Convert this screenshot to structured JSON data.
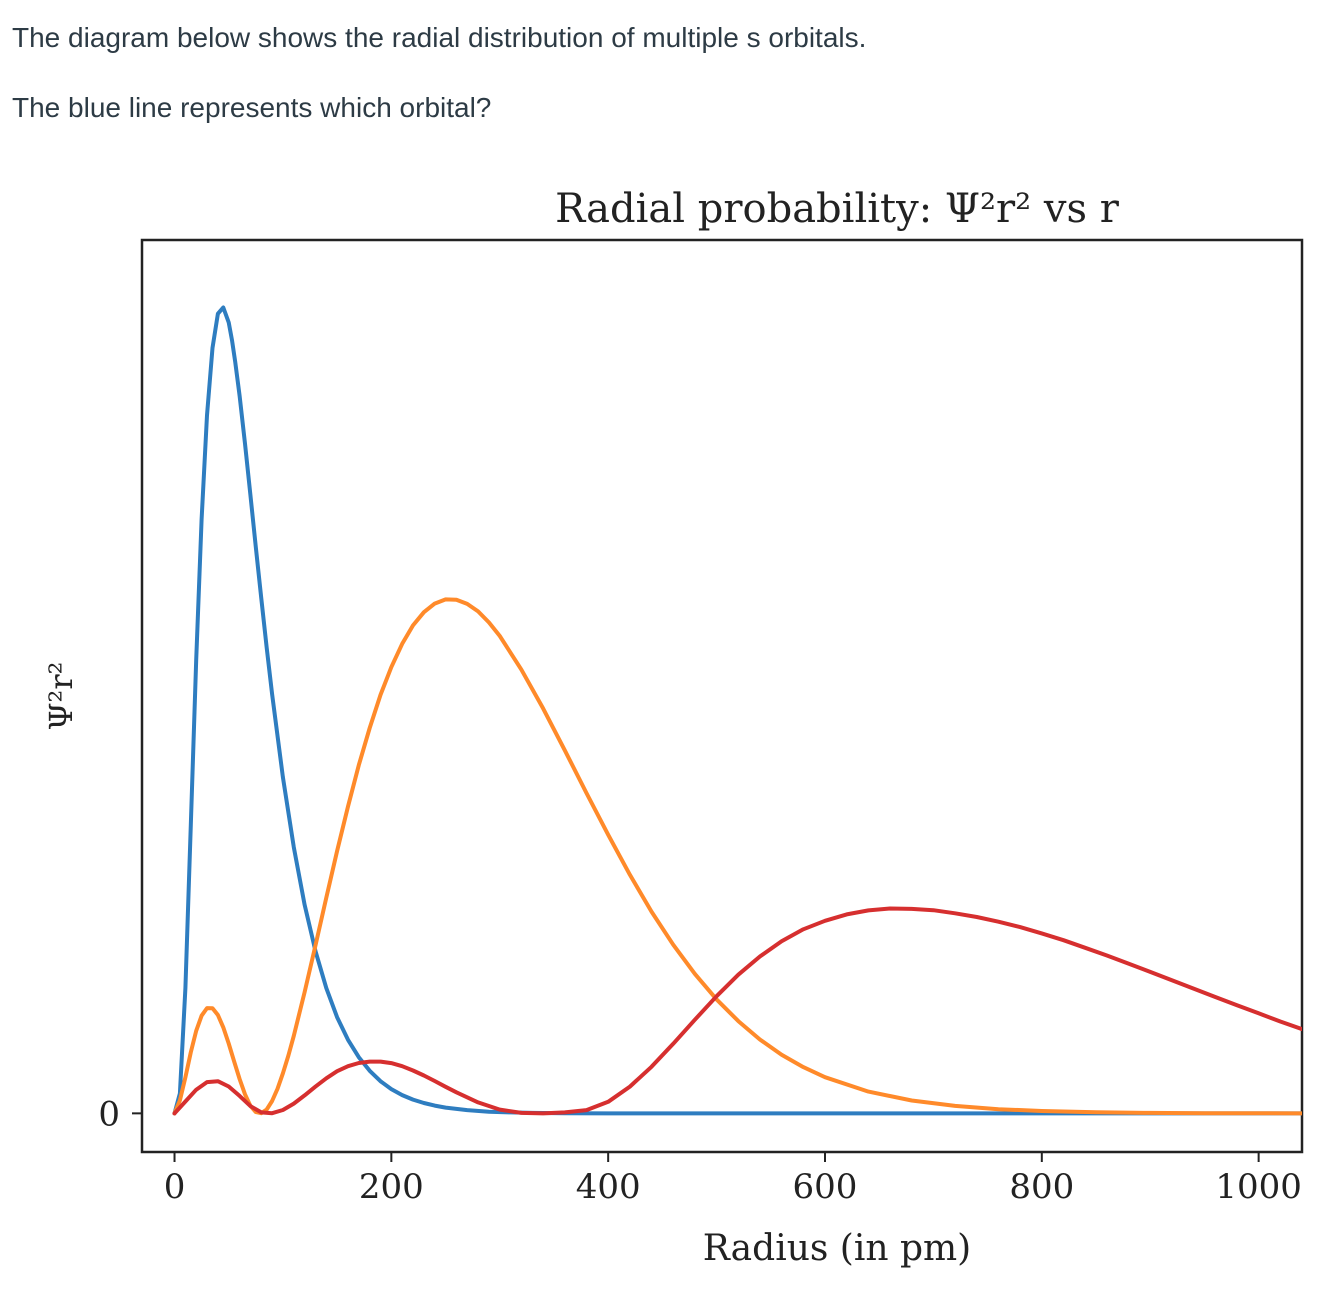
{
  "question": {
    "line1": "The diagram below shows the radial distribution of multiple s orbitals.",
    "line2": "The blue line represents which orbital?"
  },
  "chart_data": {
    "type": "line",
    "title": "Radial probability: Ψ²r² vs r",
    "xlabel": "Radius (in pm)",
    "ylabel": "Ψ²r²",
    "xlim": [
      -30,
      1040
    ],
    "ylim": [
      -0.0025,
      0.0565
    ],
    "x_ticks": [
      0,
      200,
      400,
      600,
      800,
      1000
    ],
    "y_ticks": [
      0
    ],
    "grid": false,
    "legend": "none",
    "colors": {
      "blue": "#2e7dc0",
      "orange": "#ff8a2a",
      "red": "#d62f2f"
    },
    "series": [
      {
        "color": "blue",
        "x": [
          0,
          5,
          10,
          15,
          20,
          25,
          30,
          35,
          40,
          45,
          50,
          53,
          56,
          60,
          65,
          70,
          75,
          80,
          85,
          90,
          100,
          110,
          120,
          130,
          140,
          150,
          160,
          170,
          180,
          190,
          200,
          210,
          220,
          230,
          240,
          250,
          270,
          290,
          310,
          330,
          360,
          400,
          450,
          500,
          600,
          700,
          800,
          900,
          1000,
          1040
        ],
        "y": [
          0,
          0.00129,
          0.0081,
          0.01864,
          0.02934,
          0.03843,
          0.04516,
          0.04952,
          0.05173,
          0.05213,
          0.05117,
          0.05002,
          0.04862,
          0.04643,
          0.04333,
          0.04001,
          0.03663,
          0.03331,
          0.03012,
          0.02712,
          0.02175,
          0.01722,
          0.0135,
          0.01049,
          0.0081,
          0.00622,
          0.00476,
          0.00363,
          0.00275,
          0.00208,
          0.00157,
          0.00118,
          0.00089,
          0.00067,
          0.0005,
          0.00037,
          0.00021,
          0.00011,
          6e-05,
          3e-05,
          1e-05,
          0,
          0,
          0,
          0,
          0,
          0,
          0,
          0,
          0
        ]
      },
      {
        "color": "orange",
        "x": [
          0,
          5,
          10,
          15,
          20,
          25,
          30,
          35,
          40,
          45,
          50,
          55,
          60,
          65,
          70,
          75,
          80,
          85,
          90,
          95,
          100,
          105,
          110,
          120,
          130,
          140,
          150,
          160,
          170,
          180,
          190,
          200,
          210,
          220,
          230,
          240,
          250,
          260,
          270,
          280,
          290,
          300,
          320,
          340,
          360,
          380,
          400,
          420,
          440,
          460,
          480,
          500,
          520,
          540,
          560,
          580,
          600,
          640,
          680,
          720,
          760,
          800,
          850,
          900,
          950,
          1000,
          1040
        ],
        "y": [
          0,
          0.00084,
          0.00233,
          0.00395,
          0.00534,
          0.00632,
          0.00681,
          0.0068,
          0.00636,
          0.00556,
          0.00452,
          0.00337,
          0.00222,
          0.00123,
          0.00049,
          8e-05,
          1e-05,
          0.00025,
          0.0008,
          0.00159,
          0.00259,
          0.00374,
          0.00502,
          0.00784,
          0.01087,
          0.01395,
          0.01697,
          0.01985,
          0.02253,
          0.02493,
          0.02707,
          0.02886,
          0.03038,
          0.03157,
          0.03242,
          0.03298,
          0.03325,
          0.03323,
          0.03296,
          0.03247,
          0.03176,
          0.03088,
          0.0287,
          0.0262,
          0.02349,
          0.02072,
          0.01802,
          0.01543,
          0.01305,
          0.01091,
          0.00902,
          0.00737,
          0.00597,
          0.00478,
          0.00379,
          0.00299,
          0.00234,
          0.00141,
          0.00083,
          0.00048,
          0.00027,
          0.00015,
          7e-05,
          3e-05,
          1e-05,
          1e-05,
          0
        ]
      },
      {
        "color": "red",
        "x": [
          0,
          10,
          20,
          30,
          40,
          50,
          60,
          70,
          80,
          90,
          100,
          110,
          120,
          130,
          140,
          150,
          160,
          170,
          180,
          190,
          200,
          210,
          220,
          230,
          240,
          250,
          260,
          280,
          300,
          320,
          340,
          360,
          380,
          400,
          420,
          440,
          460,
          480,
          500,
          520,
          540,
          560,
          580,
          600,
          620,
          640,
          660,
          680,
          700,
          720,
          740,
          760,
          780,
          800,
          820,
          840,
          860,
          880,
          900,
          920,
          940,
          960,
          980,
          1000,
          1020,
          1040
        ],
        "y": [
          0,
          0.00077,
          0.00153,
          0.00202,
          0.00208,
          0.00174,
          0.00113,
          0.00047,
          6e-05,
          1e-05,
          0.00022,
          0.00063,
          0.00116,
          0.00173,
          0.00227,
          0.00273,
          0.00305,
          0.00326,
          0.00335,
          0.00335,
          0.00325,
          0.00305,
          0.00277,
          0.00245,
          0.00209,
          0.00172,
          0.00136,
          0.00071,
          0.00024,
          3e-05,
          0.0,
          6e-05,
          0.00021,
          0.00075,
          0.00173,
          0.00301,
          0.0045,
          0.00606,
          0.00758,
          0.00897,
          0.01015,
          0.01114,
          0.01191,
          0.01246,
          0.01287,
          0.01313,
          0.01325,
          0.01323,
          0.01314,
          0.01294,
          0.0127,
          0.0124,
          0.01205,
          0.01164,
          0.0112,
          0.01071,
          0.01021,
          0.00969,
          0.00915,
          0.00861,
          0.00807,
          0.00753,
          0.00699,
          0.00647,
          0.00594,
          0.00545
        ]
      }
    ]
  }
}
